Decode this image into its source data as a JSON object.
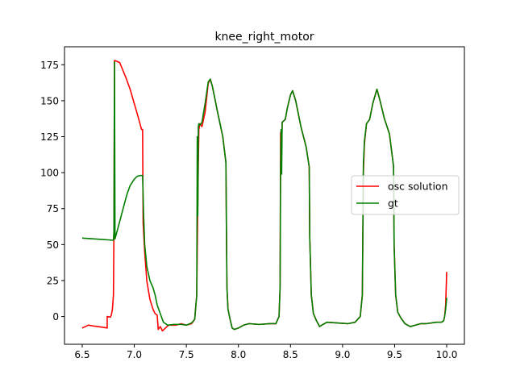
{
  "chart_data": {
    "type": "line",
    "title": "knee_right_motor",
    "xlabel": "",
    "ylabel": "",
    "xlim": [
      6.33,
      10.17
    ],
    "ylim": [
      -19.3,
      187.5
    ],
    "xticks": [
      6.5,
      7.0,
      7.5,
      8.0,
      8.5,
      9.0,
      9.5,
      10.0
    ],
    "xtick_labels": [
      "6.5",
      "7.0",
      "7.5",
      "8.0",
      "8.5",
      "9.0",
      "9.5",
      "10.0"
    ],
    "yticks": [
      0,
      25,
      50,
      75,
      100,
      125,
      150,
      175
    ],
    "ytick_labels": [
      "0",
      "25",
      "50",
      "75",
      "100",
      "125",
      "150",
      "175"
    ],
    "grid": false,
    "legend_position": "center-right",
    "series": [
      {
        "name": "osc solution",
        "color": "#ff0000",
        "points": [
          [
            6.5,
            -8
          ],
          [
            6.53,
            -7
          ],
          [
            6.56,
            -6
          ],
          [
            6.6,
            -6.5
          ],
          [
            6.65,
            -7
          ],
          [
            6.7,
            -7.5
          ],
          [
            6.74,
            -8
          ],
          [
            6.74,
            0
          ],
          [
            6.77,
            -0.5
          ],
          [
            6.78,
            1
          ],
          [
            6.79,
            5
          ],
          [
            6.8,
            15
          ],
          [
            6.805,
            60
          ],
          [
            6.81,
            178
          ],
          [
            6.83,
            177.5
          ],
          [
            6.86,
            176.5
          ],
          [
            6.88,
            173
          ],
          [
            6.92,
            166
          ],
          [
            6.96,
            158
          ],
          [
            7.0,
            148
          ],
          [
            7.04,
            138
          ],
          [
            7.07,
            130
          ],
          [
            7.08,
            130
          ],
          [
            7.085,
            65
          ],
          [
            7.1,
            45
          ],
          [
            7.12,
            25
          ],
          [
            7.15,
            12
          ],
          [
            7.18,
            5
          ],
          [
            7.2,
            2
          ],
          [
            7.22,
            1
          ],
          [
            7.23,
            -9
          ],
          [
            7.25,
            -7
          ],
          [
            7.27,
            -10
          ],
          [
            7.3,
            -8
          ],
          [
            7.33,
            -6
          ],
          [
            7.4,
            -6
          ],
          [
            7.45,
            -5
          ],
          [
            7.5,
            -6
          ],
          [
            7.55,
            -5
          ],
          [
            7.58,
            -2
          ],
          [
            7.6,
            15
          ],
          [
            7.61,
            80
          ],
          [
            7.62,
            130
          ],
          [
            7.63,
            134
          ],
          [
            7.65,
            132
          ],
          [
            7.68,
            142
          ],
          [
            7.71,
            162
          ],
          [
            7.73,
            165
          ],
          [
            7.75,
            160
          ],
          [
            7.8,
            142
          ],
          [
            7.85,
            125
          ],
          [
            7.88,
            107
          ],
          [
            7.885,
            60
          ],
          [
            7.89,
            20
          ],
          [
            7.9,
            5
          ],
          [
            7.92,
            -2
          ],
          [
            7.94,
            -8
          ],
          [
            7.96,
            -9
          ],
          [
            8.0,
            -8
          ],
          [
            8.05,
            -6
          ],
          [
            8.1,
            -5
          ],
          [
            8.2,
            -5.5
          ],
          [
            8.3,
            -5
          ],
          [
            8.36,
            -5
          ],
          [
            8.39,
            0
          ],
          [
            8.4,
            20
          ],
          [
            8.405,
            128
          ],
          [
            8.41,
            100
          ],
          [
            8.42,
            135
          ],
          [
            8.45,
            137
          ],
          [
            8.47,
            145
          ],
          [
            8.5,
            154
          ],
          [
            8.52,
            157
          ],
          [
            8.55,
            150
          ],
          [
            8.6,
            132
          ],
          [
            8.65,
            118
          ],
          [
            8.68,
            104
          ],
          [
            8.685,
            55
          ],
          [
            8.7,
            15
          ],
          [
            8.72,
            2
          ],
          [
            8.75,
            -3
          ],
          [
            8.78,
            -7
          ],
          [
            8.8,
            -6
          ],
          [
            8.85,
            -4
          ],
          [
            8.95,
            -4.5
          ],
          [
            9.05,
            -5
          ],
          [
            9.12,
            -4
          ],
          [
            9.17,
            0
          ],
          [
            9.19,
            15
          ],
          [
            9.2,
            100
          ],
          [
            9.21,
            120
          ],
          [
            9.23,
            134
          ],
          [
            9.26,
            137
          ],
          [
            9.29,
            148
          ],
          [
            9.33,
            158
          ],
          [
            9.36,
            150
          ],
          [
            9.4,
            138
          ],
          [
            9.45,
            127
          ],
          [
            9.48,
            110
          ],
          [
            9.49,
            104
          ],
          [
            9.495,
            50
          ],
          [
            9.51,
            15
          ],
          [
            9.53,
            3
          ],
          [
            9.56,
            -1
          ],
          [
            9.6,
            -5
          ],
          [
            9.65,
            -7
          ],
          [
            9.7,
            -6
          ],
          [
            9.75,
            -5
          ],
          [
            9.8,
            -5
          ],
          [
            9.9,
            -4
          ],
          [
            9.95,
            -4
          ],
          [
            9.97,
            -3
          ],
          [
            9.98,
            0
          ],
          [
            9.99,
            8
          ],
          [
            10.0,
            31
          ]
        ]
      },
      {
        "name": "gt",
        "color": "#008000",
        "points": [
          [
            6.5,
            54.5
          ],
          [
            6.6,
            54
          ],
          [
            6.7,
            53.5
          ],
          [
            6.8,
            53
          ],
          [
            6.805,
            60
          ],
          [
            6.81,
            177
          ],
          [
            6.815,
            54
          ],
          [
            6.83,
            58
          ],
          [
            6.86,
            66
          ],
          [
            6.9,
            77
          ],
          [
            6.93,
            85
          ],
          [
            6.96,
            91
          ],
          [
            7.0,
            95.5
          ],
          [
            7.03,
            97.5
          ],
          [
            7.06,
            98
          ],
          [
            7.08,
            98
          ],
          [
            7.09,
            70
          ],
          [
            7.1,
            50
          ],
          [
            7.12,
            35
          ],
          [
            7.15,
            25
          ],
          [
            7.18,
            20
          ],
          [
            7.2,
            15
          ],
          [
            7.22,
            8
          ],
          [
            7.25,
            2
          ],
          [
            7.28,
            -4
          ],
          [
            7.32,
            -6
          ],
          [
            7.38,
            -5.5
          ],
          [
            7.45,
            -5.5
          ],
          [
            7.5,
            -6
          ],
          [
            7.55,
            -4.5
          ],
          [
            7.58,
            -2
          ],
          [
            7.6,
            15
          ],
          [
            7.605,
            125
          ],
          [
            7.61,
            70
          ],
          [
            7.615,
            132
          ],
          [
            7.62,
            134
          ],
          [
            7.63,
            133
          ],
          [
            7.65,
            135
          ],
          [
            7.68,
            148
          ],
          [
            7.71,
            163
          ],
          [
            7.73,
            165
          ],
          [
            7.75,
            160
          ],
          [
            7.8,
            142
          ],
          [
            7.85,
            125
          ],
          [
            7.88,
            107
          ],
          [
            7.885,
            60
          ],
          [
            7.89,
            20
          ],
          [
            7.9,
            5
          ],
          [
            7.92,
            -2
          ],
          [
            7.94,
            -8
          ],
          [
            7.96,
            -9
          ],
          [
            8.0,
            -8
          ],
          [
            8.05,
            -6
          ],
          [
            8.1,
            -5
          ],
          [
            8.2,
            -5.5
          ],
          [
            8.3,
            -5
          ],
          [
            8.36,
            -5
          ],
          [
            8.39,
            0
          ],
          [
            8.4,
            20
          ],
          [
            8.405,
            100
          ],
          [
            8.41,
            130
          ],
          [
            8.415,
            99
          ],
          [
            8.42,
            135
          ],
          [
            8.45,
            137
          ],
          [
            8.47,
            145
          ],
          [
            8.5,
            154
          ],
          [
            8.52,
            157
          ],
          [
            8.55,
            150
          ],
          [
            8.6,
            132
          ],
          [
            8.65,
            118
          ],
          [
            8.68,
            104
          ],
          [
            8.685,
            55
          ],
          [
            8.7,
            15
          ],
          [
            8.72,
            2
          ],
          [
            8.75,
            -3
          ],
          [
            8.78,
            -7
          ],
          [
            8.8,
            -6
          ],
          [
            8.85,
            -4
          ],
          [
            8.95,
            -4.5
          ],
          [
            9.05,
            -5
          ],
          [
            9.12,
            -4
          ],
          [
            9.17,
            0
          ],
          [
            9.19,
            15
          ],
          [
            9.2,
            106
          ],
          [
            9.21,
            122
          ],
          [
            9.23,
            134
          ],
          [
            9.26,
            137
          ],
          [
            9.29,
            148
          ],
          [
            9.33,
            158
          ],
          [
            9.36,
            150
          ],
          [
            9.4,
            138
          ],
          [
            9.45,
            127
          ],
          [
            9.48,
            110
          ],
          [
            9.49,
            104
          ],
          [
            9.495,
            50
          ],
          [
            9.51,
            15
          ],
          [
            9.53,
            3
          ],
          [
            9.56,
            -1
          ],
          [
            9.6,
            -5
          ],
          [
            9.65,
            -7
          ],
          [
            9.7,
            -6
          ],
          [
            9.75,
            -5
          ],
          [
            9.8,
            -5
          ],
          [
            9.9,
            -4
          ],
          [
            9.95,
            -4
          ],
          [
            9.97,
            -3
          ],
          [
            9.98,
            0
          ],
          [
            9.99,
            5
          ],
          [
            10.0,
            13
          ]
        ]
      }
    ]
  }
}
